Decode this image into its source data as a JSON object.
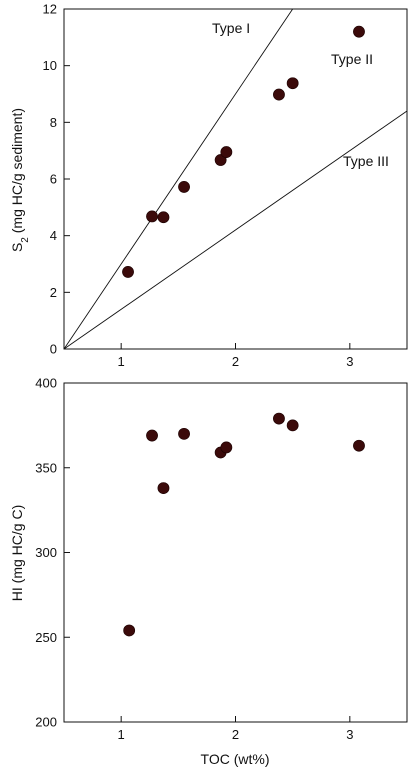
{
  "chart_data": [
    {
      "type": "scatter",
      "xlim": [
        0.5,
        3.5
      ],
      "ylim": [
        0,
        12
      ],
      "x_ticks": [
        "1",
        "2",
        "3"
      ],
      "y_ticks": [
        "0",
        "2",
        "4",
        "6",
        "8",
        "10",
        "12"
      ],
      "xlabel": "",
      "ylabel_main": "S",
      "ylabel_sub": "2",
      "ylabel_rest": " (mg HC/g sediment)",
      "grid": false,
      "series": [
        {
          "points": [
            {
              "x": 1.06,
              "y": 2.72
            },
            {
              "x": 1.27,
              "y": 4.68
            },
            {
              "x": 1.37,
              "y": 4.65
            },
            {
              "x": 1.55,
              "y": 5.72
            },
            {
              "x": 1.87,
              "y": 6.67
            },
            {
              "x": 1.92,
              "y": 6.95
            },
            {
              "x": 2.38,
              "y": 8.98
            },
            {
              "x": 2.5,
              "y": 9.38
            },
            {
              "x": 3.08,
              "y": 11.2
            }
          ]
        }
      ],
      "reference_lines": [
        {
          "label": "Type I",
          "slope": 6.0
        },
        {
          "label": "Type II",
          "slope": null
        },
        {
          "label": "Type III",
          "slope": 2.8
        }
      ]
    },
    {
      "type": "scatter",
      "xlim": [
        0.5,
        3.5
      ],
      "ylim": [
        200,
        400
      ],
      "x_ticks": [
        "1",
        "2",
        "3"
      ],
      "y_ticks": [
        "200",
        "250",
        "300",
        "350",
        "400"
      ],
      "xlabel": "TOC (wt%)",
      "ylabel": "HI (mg HC/g C)",
      "grid": false,
      "series": [
        {
          "points": [
            {
              "x": 1.07,
              "y": 254
            },
            {
              "x": 1.27,
              "y": 369
            },
            {
              "x": 1.37,
              "y": 338
            },
            {
              "x": 1.55,
              "y": 370
            },
            {
              "x": 1.87,
              "y": 359
            },
            {
              "x": 1.92,
              "y": 362
            },
            {
              "x": 2.38,
              "y": 379
            },
            {
              "x": 2.5,
              "y": 375
            },
            {
              "x": 3.08,
              "y": 363
            }
          ]
        }
      ]
    }
  ],
  "colors": {
    "point": "#3b0a0a",
    "axis": "#111111"
  }
}
